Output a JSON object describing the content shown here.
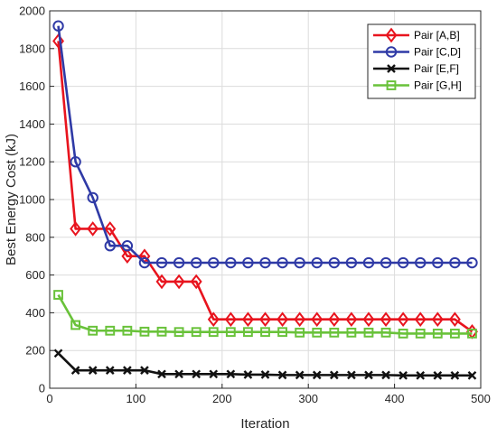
{
  "chart_data": {
    "type": "line",
    "xlabel": "Iteration",
    "ylabel": "Best Energy Cost (kJ)",
    "xlim": [
      0,
      500
    ],
    "ylim": [
      0,
      2000
    ],
    "xticks": [
      0,
      100,
      200,
      300,
      400,
      500
    ],
    "yticks": [
      0,
      200,
      400,
      600,
      800,
      1000,
      1200,
      1400,
      1600,
      1800,
      2000
    ],
    "grid": true,
    "legend_position": "top-right",
    "x": [
      10,
      30,
      50,
      70,
      90,
      110,
      130,
      150,
      170,
      190,
      210,
      230,
      250,
      270,
      290,
      310,
      330,
      350,
      370,
      390,
      410,
      430,
      450,
      470,
      490
    ],
    "series": [
      {
        "name": "Pair [A,B]",
        "color": "#e8141e",
        "marker": "diamond",
        "values": [
          1840,
          845,
          845,
          845,
          700,
          700,
          565,
          565,
          565,
          365,
          365,
          365,
          365,
          365,
          365,
          365,
          365,
          365,
          365,
          365,
          365,
          365,
          365,
          365,
          300
        ]
      },
      {
        "name": "Pair [C,D]",
        "color": "#2f3aa6",
        "marker": "circle",
        "values": [
          1920,
          1200,
          1010,
          755,
          755,
          665,
          665,
          665,
          665,
          665,
          665,
          665,
          665,
          665,
          665,
          665,
          665,
          665,
          665,
          665,
          665,
          665,
          665,
          665,
          665
        ]
      },
      {
        "name": "Pair [E,F]",
        "color": "#111111",
        "marker": "x",
        "values": [
          185,
          95,
          95,
          95,
          95,
          95,
          75,
          75,
          75,
          75,
          75,
          72,
          72,
          70,
          70,
          70,
          70,
          70,
          70,
          70,
          68,
          68,
          68,
          68,
          68
        ]
      },
      {
        "name": "Pair [G,H]",
        "color": "#69c23a",
        "marker": "square",
        "values": [
          495,
          335,
          305,
          305,
          305,
          300,
          300,
          298,
          298,
          298,
          298,
          298,
          298,
          298,
          295,
          295,
          295,
          295,
          295,
          295,
          290,
          290,
          290,
          290,
          290
        ]
      }
    ]
  }
}
